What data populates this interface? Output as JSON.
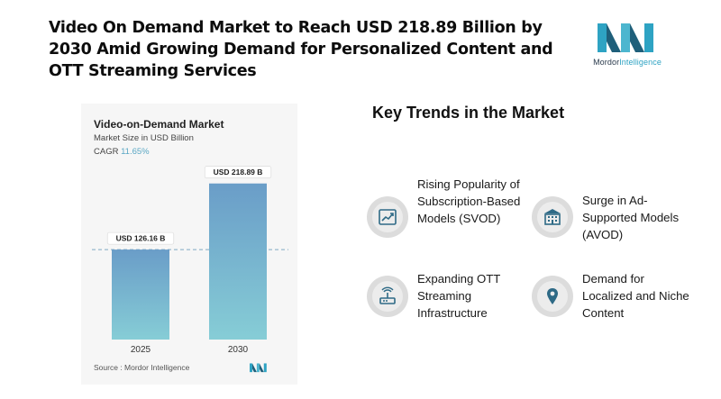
{
  "headline": "Video On Demand Market to Reach USD 218.89 Billion by 2030 Amid Growing Demand for Personalized Content and OTT Streaming Services",
  "brand": {
    "part1": "Mordor",
    "part2": "Intelligence"
  },
  "colors": {
    "bar_top": "#6a9dc8",
    "bar_bottom": "#86cdd6",
    "accent": "#2ea3c3",
    "label_bg": "#ffffff"
  },
  "chart_data": {
    "type": "bar",
    "title": "Video-on-Demand Market",
    "subtitle": "Market Size in USD Billion",
    "cagr_label": "CAGR",
    "cagr_value": "11.65%",
    "categories": [
      "2025",
      "2030"
    ],
    "values": [
      126.16,
      218.89
    ],
    "value_labels": [
      "USD 126.16 B",
      "USD 218.89 B"
    ],
    "unit": "USD Billion",
    "ylim": [
      0,
      240
    ],
    "reference_line": 126.16,
    "source": "Source : Mordor Intelligence"
  },
  "trends": {
    "title": "Key Trends in the Market",
    "items": [
      {
        "label": "Rising Popularity of Subscription-Based Models (SVOD)",
        "icon": "growth-chart-icon"
      },
      {
        "label": "Surge in Ad-Supported Models (AVOD)",
        "icon": "building-icon"
      },
      {
        "label": "Expanding OTT Streaming Infrastructure",
        "icon": "router-icon"
      },
      {
        "label": "Demand for Localized and Niche Content",
        "icon": "location-pin-icon"
      }
    ]
  }
}
